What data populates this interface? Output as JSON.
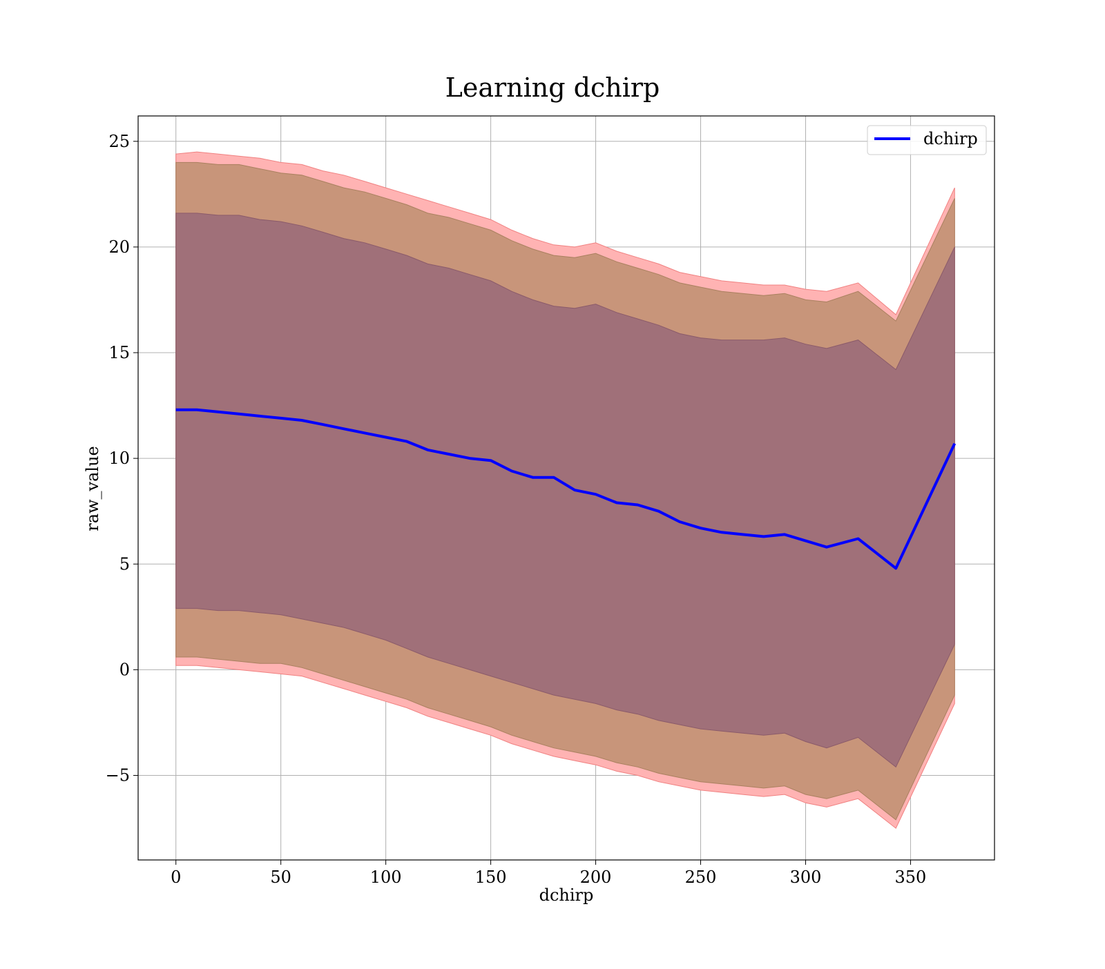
{
  "chart_data": {
    "type": "area",
    "title": "Learning dchirp",
    "xlabel": "dchirp",
    "ylabel": "raw_value",
    "xlim": [
      -18,
      390
    ],
    "ylim": [
      -9,
      26.2
    ],
    "xticks": [
      0,
      50,
      100,
      150,
      200,
      250,
      300,
      350
    ],
    "xtick_labels": [
      "0",
      "50",
      "100",
      "150",
      "200",
      "250",
      "300",
      "350"
    ],
    "yticks": [
      -5,
      0,
      5,
      10,
      15,
      20,
      25
    ],
    "ytick_labels": [
      "−5",
      "0",
      "5",
      "10",
      "15",
      "20",
      "25"
    ],
    "grid": true,
    "legend": {
      "position": "top-right",
      "entries": [
        "dchirp"
      ]
    },
    "colors": {
      "line": "#0000ff",
      "band_outer": "#ffb3b3",
      "band_mid": "#c8957a",
      "band_inner": "#a07079"
    },
    "x": [
      0,
      10,
      20,
      30,
      40,
      50,
      60,
      70,
      80,
      90,
      100,
      110,
      120,
      130,
      140,
      150,
      160,
      170,
      180,
      190,
      200,
      210,
      220,
      230,
      240,
      250,
      260,
      270,
      280,
      290,
      300,
      310,
      325,
      343,
      371
    ],
    "series": [
      {
        "name": "dchirp",
        "values": [
          12.3,
          12.3,
          12.2,
          12.1,
          12.0,
          11.9,
          11.8,
          11.6,
          11.4,
          11.2,
          11.0,
          10.8,
          10.4,
          10.2,
          10.0,
          9.9,
          9.4,
          9.1,
          9.1,
          8.5,
          8.3,
          7.9,
          7.8,
          7.5,
          7.0,
          6.7,
          6.5,
          6.4,
          6.3,
          6.4,
          6.1,
          5.8,
          6.2,
          4.8,
          10.7
        ]
      },
      {
        "name": "",
        "values": [
          24.4,
          24.5,
          24.4,
          24.3,
          24.2,
          24.0,
          23.9,
          23.6,
          23.4,
          23.1,
          22.8,
          22.5,
          22.2,
          21.9,
          21.6,
          21.3,
          20.8,
          20.4,
          20.1,
          20.0,
          20.2,
          19.8,
          19.5,
          19.2,
          18.8,
          18.6,
          18.4,
          18.3,
          18.2,
          18.2,
          18.0,
          17.9,
          18.3,
          16.8,
          22.8
        ]
      },
      {
        "name": "",
        "values": [
          24.0,
          24.0,
          23.9,
          23.9,
          23.7,
          23.5,
          23.4,
          23.1,
          22.8,
          22.6,
          22.3,
          22.0,
          21.6,
          21.4,
          21.1,
          20.8,
          20.3,
          19.9,
          19.6,
          19.5,
          19.7,
          19.3,
          19.0,
          18.7,
          18.3,
          18.1,
          17.9,
          17.8,
          17.7,
          17.8,
          17.5,
          17.4,
          17.9,
          16.5,
          22.3
        ]
      },
      {
        "name": "",
        "values": [
          21.6,
          21.6,
          21.5,
          21.5,
          21.3,
          21.2,
          21.0,
          20.7,
          20.4,
          20.2,
          19.9,
          19.6,
          19.2,
          19.0,
          18.7,
          18.4,
          17.9,
          17.5,
          17.2,
          17.1,
          17.3,
          16.9,
          16.6,
          16.3,
          15.9,
          15.7,
          15.6,
          15.6,
          15.6,
          15.7,
          15.4,
          15.2,
          15.6,
          14.2,
          20.0
        ]
      },
      {
        "name": "",
        "values": [
          2.9,
          2.9,
          2.8,
          2.8,
          2.7,
          2.6,
          2.4,
          2.2,
          2.0,
          1.7,
          1.4,
          1.0,
          0.6,
          0.3,
          0.0,
          -0.3,
          -0.6,
          -0.9,
          -1.2,
          -1.4,
          -1.6,
          -1.9,
          -2.1,
          -2.4,
          -2.6,
          -2.8,
          -2.9,
          -3.0,
          -3.1,
          -3.0,
          -3.4,
          -3.7,
          -3.2,
          -4.6,
          1.2
        ]
      },
      {
        "name": "",
        "values": [
          0.6,
          0.6,
          0.5,
          0.4,
          0.3,
          0.3,
          0.1,
          -0.2,
          -0.5,
          -0.8,
          -1.1,
          -1.4,
          -1.8,
          -2.1,
          -2.4,
          -2.7,
          -3.1,
          -3.4,
          -3.7,
          -3.9,
          -4.1,
          -4.4,
          -4.6,
          -4.9,
          -5.1,
          -5.3,
          -5.4,
          -5.5,
          -5.6,
          -5.5,
          -5.9,
          -6.1,
          -5.7,
          -7.1,
          -1.2
        ]
      },
      {
        "name": "",
        "values": [
          0.2,
          0.2,
          0.1,
          0.0,
          -0.1,
          -0.2,
          -0.3,
          -0.6,
          -0.9,
          -1.2,
          -1.5,
          -1.8,
          -2.2,
          -2.5,
          -2.8,
          -3.1,
          -3.5,
          -3.8,
          -4.1,
          -4.3,
          -4.5,
          -4.8,
          -5.0,
          -5.3,
          -5.5,
          -5.7,
          -5.8,
          -5.9,
          -6.0,
          -5.9,
          -6.3,
          -6.5,
          -6.1,
          -7.5,
          -1.6
        ]
      }
    ]
  }
}
